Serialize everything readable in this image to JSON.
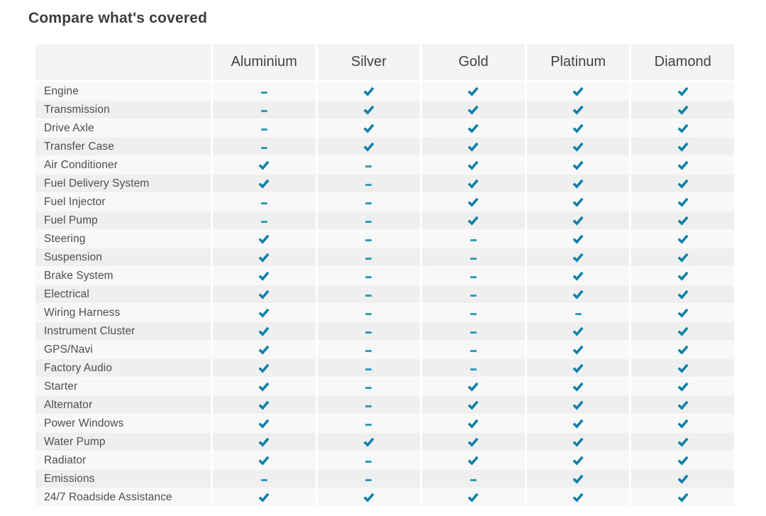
{
  "title": "Compare what's covered",
  "colors": {
    "check": "#0f81a8",
    "dash": "#2f9cbd",
    "header_bg": "#f4f4f4",
    "row_light": "#f8f8f8",
    "row_dark": "#efefef",
    "header_text": "#424242",
    "label_text": "#4e4e4e",
    "title_text": "#3c3c3c"
  },
  "table": {
    "columns": [
      "Aluminium",
      "Silver",
      "Gold",
      "Platinum",
      "Diamond"
    ],
    "rows": [
      {
        "label": "Engine",
        "coverage": [
          false,
          true,
          true,
          true,
          true
        ]
      },
      {
        "label": "Transmission",
        "coverage": [
          false,
          true,
          true,
          true,
          true
        ]
      },
      {
        "label": "Drive Axle",
        "coverage": [
          false,
          true,
          true,
          true,
          true
        ]
      },
      {
        "label": "Transfer Case",
        "coverage": [
          false,
          true,
          true,
          true,
          true
        ]
      },
      {
        "label": "Air Conditioner",
        "coverage": [
          true,
          false,
          true,
          true,
          true
        ]
      },
      {
        "label": "Fuel Delivery System",
        "coverage": [
          true,
          false,
          true,
          true,
          true
        ]
      },
      {
        "label": "Fuel Injector",
        "coverage": [
          false,
          false,
          true,
          true,
          true
        ]
      },
      {
        "label": "Fuel Pump",
        "coverage": [
          false,
          false,
          true,
          true,
          true
        ]
      },
      {
        "label": "Steering",
        "coverage": [
          true,
          false,
          false,
          true,
          true
        ]
      },
      {
        "label": "Suspension",
        "coverage": [
          true,
          false,
          false,
          true,
          true
        ]
      },
      {
        "label": "Brake System",
        "coverage": [
          true,
          false,
          false,
          true,
          true
        ]
      },
      {
        "label": "Electrical",
        "coverage": [
          true,
          false,
          false,
          true,
          true
        ]
      },
      {
        "label": "Wiring Harness",
        "coverage": [
          true,
          false,
          false,
          false,
          true
        ]
      },
      {
        "label": "Instrument Cluster",
        "coverage": [
          true,
          false,
          false,
          true,
          true
        ]
      },
      {
        "label": "GPS/Navi",
        "coverage": [
          true,
          false,
          false,
          true,
          true
        ]
      },
      {
        "label": "Factory Audio",
        "coverage": [
          true,
          false,
          false,
          true,
          true
        ]
      },
      {
        "label": "Starter",
        "coverage": [
          true,
          false,
          true,
          true,
          true
        ]
      },
      {
        "label": "Alternator",
        "coverage": [
          true,
          false,
          true,
          true,
          true
        ]
      },
      {
        "label": "Power Windows",
        "coverage": [
          true,
          false,
          true,
          true,
          true
        ]
      },
      {
        "label": "Water Pump",
        "coverage": [
          true,
          true,
          true,
          true,
          true
        ]
      },
      {
        "label": "Radiator",
        "coverage": [
          true,
          false,
          true,
          true,
          true
        ]
      },
      {
        "label": "Emissions",
        "coverage": [
          false,
          false,
          false,
          true,
          true
        ]
      },
      {
        "label": "24/7 Roadside Assistance",
        "coverage": [
          true,
          true,
          true,
          true,
          true
        ]
      }
    ],
    "mark_covered": "check-icon",
    "mark_not_covered": "minus-icon"
  }
}
